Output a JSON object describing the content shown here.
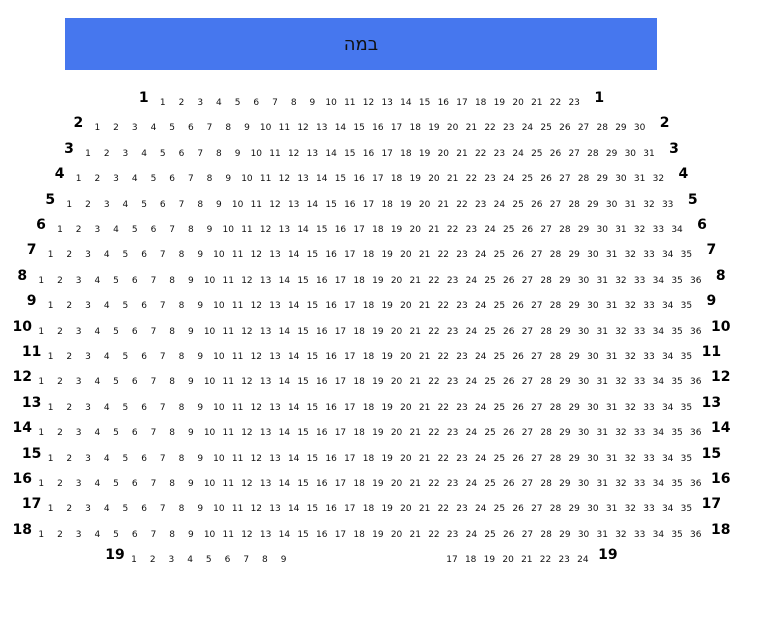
{
  "stage": {
    "label": "במה",
    "color": "#4677ee"
  },
  "rows": [
    {
      "label": "1",
      "segments": [
        [
          1,
          23
        ]
      ]
    },
    {
      "label": "2",
      "segments": [
        [
          1,
          30
        ]
      ]
    },
    {
      "label": "3",
      "segments": [
        [
          1,
          31
        ]
      ]
    },
    {
      "label": "4",
      "segments": [
        [
          1,
          32
        ]
      ]
    },
    {
      "label": "5",
      "segments": [
        [
          1,
          33
        ]
      ]
    },
    {
      "label": "6",
      "segments": [
        [
          1,
          34
        ]
      ]
    },
    {
      "label": "7",
      "segments": [
        [
          1,
          35
        ]
      ]
    },
    {
      "label": "8",
      "segments": [
        [
          1,
          36
        ]
      ]
    },
    {
      "label": "9",
      "segments": [
        [
          1,
          35
        ]
      ]
    },
    {
      "label": "10",
      "segments": [
        [
          1,
          36
        ]
      ]
    },
    {
      "label": "11",
      "segments": [
        [
          1,
          35
        ]
      ]
    },
    {
      "label": "12",
      "segments": [
        [
          1,
          36
        ]
      ]
    },
    {
      "label": "13",
      "segments": [
        [
          1,
          35
        ]
      ]
    },
    {
      "label": "14",
      "segments": [
        [
          1,
          36
        ]
      ]
    },
    {
      "label": "15",
      "segments": [
        [
          1,
          35
        ]
      ]
    },
    {
      "label": "16",
      "segments": [
        [
          1,
          36
        ]
      ]
    },
    {
      "label": "17",
      "segments": [
        [
          1,
          35
        ]
      ]
    },
    {
      "label": "18",
      "segments": [
        [
          1,
          36
        ]
      ]
    },
    {
      "label": "19",
      "segments": [
        [
          1,
          9
        ],
        [
          17,
          24
        ]
      ]
    }
  ]
}
